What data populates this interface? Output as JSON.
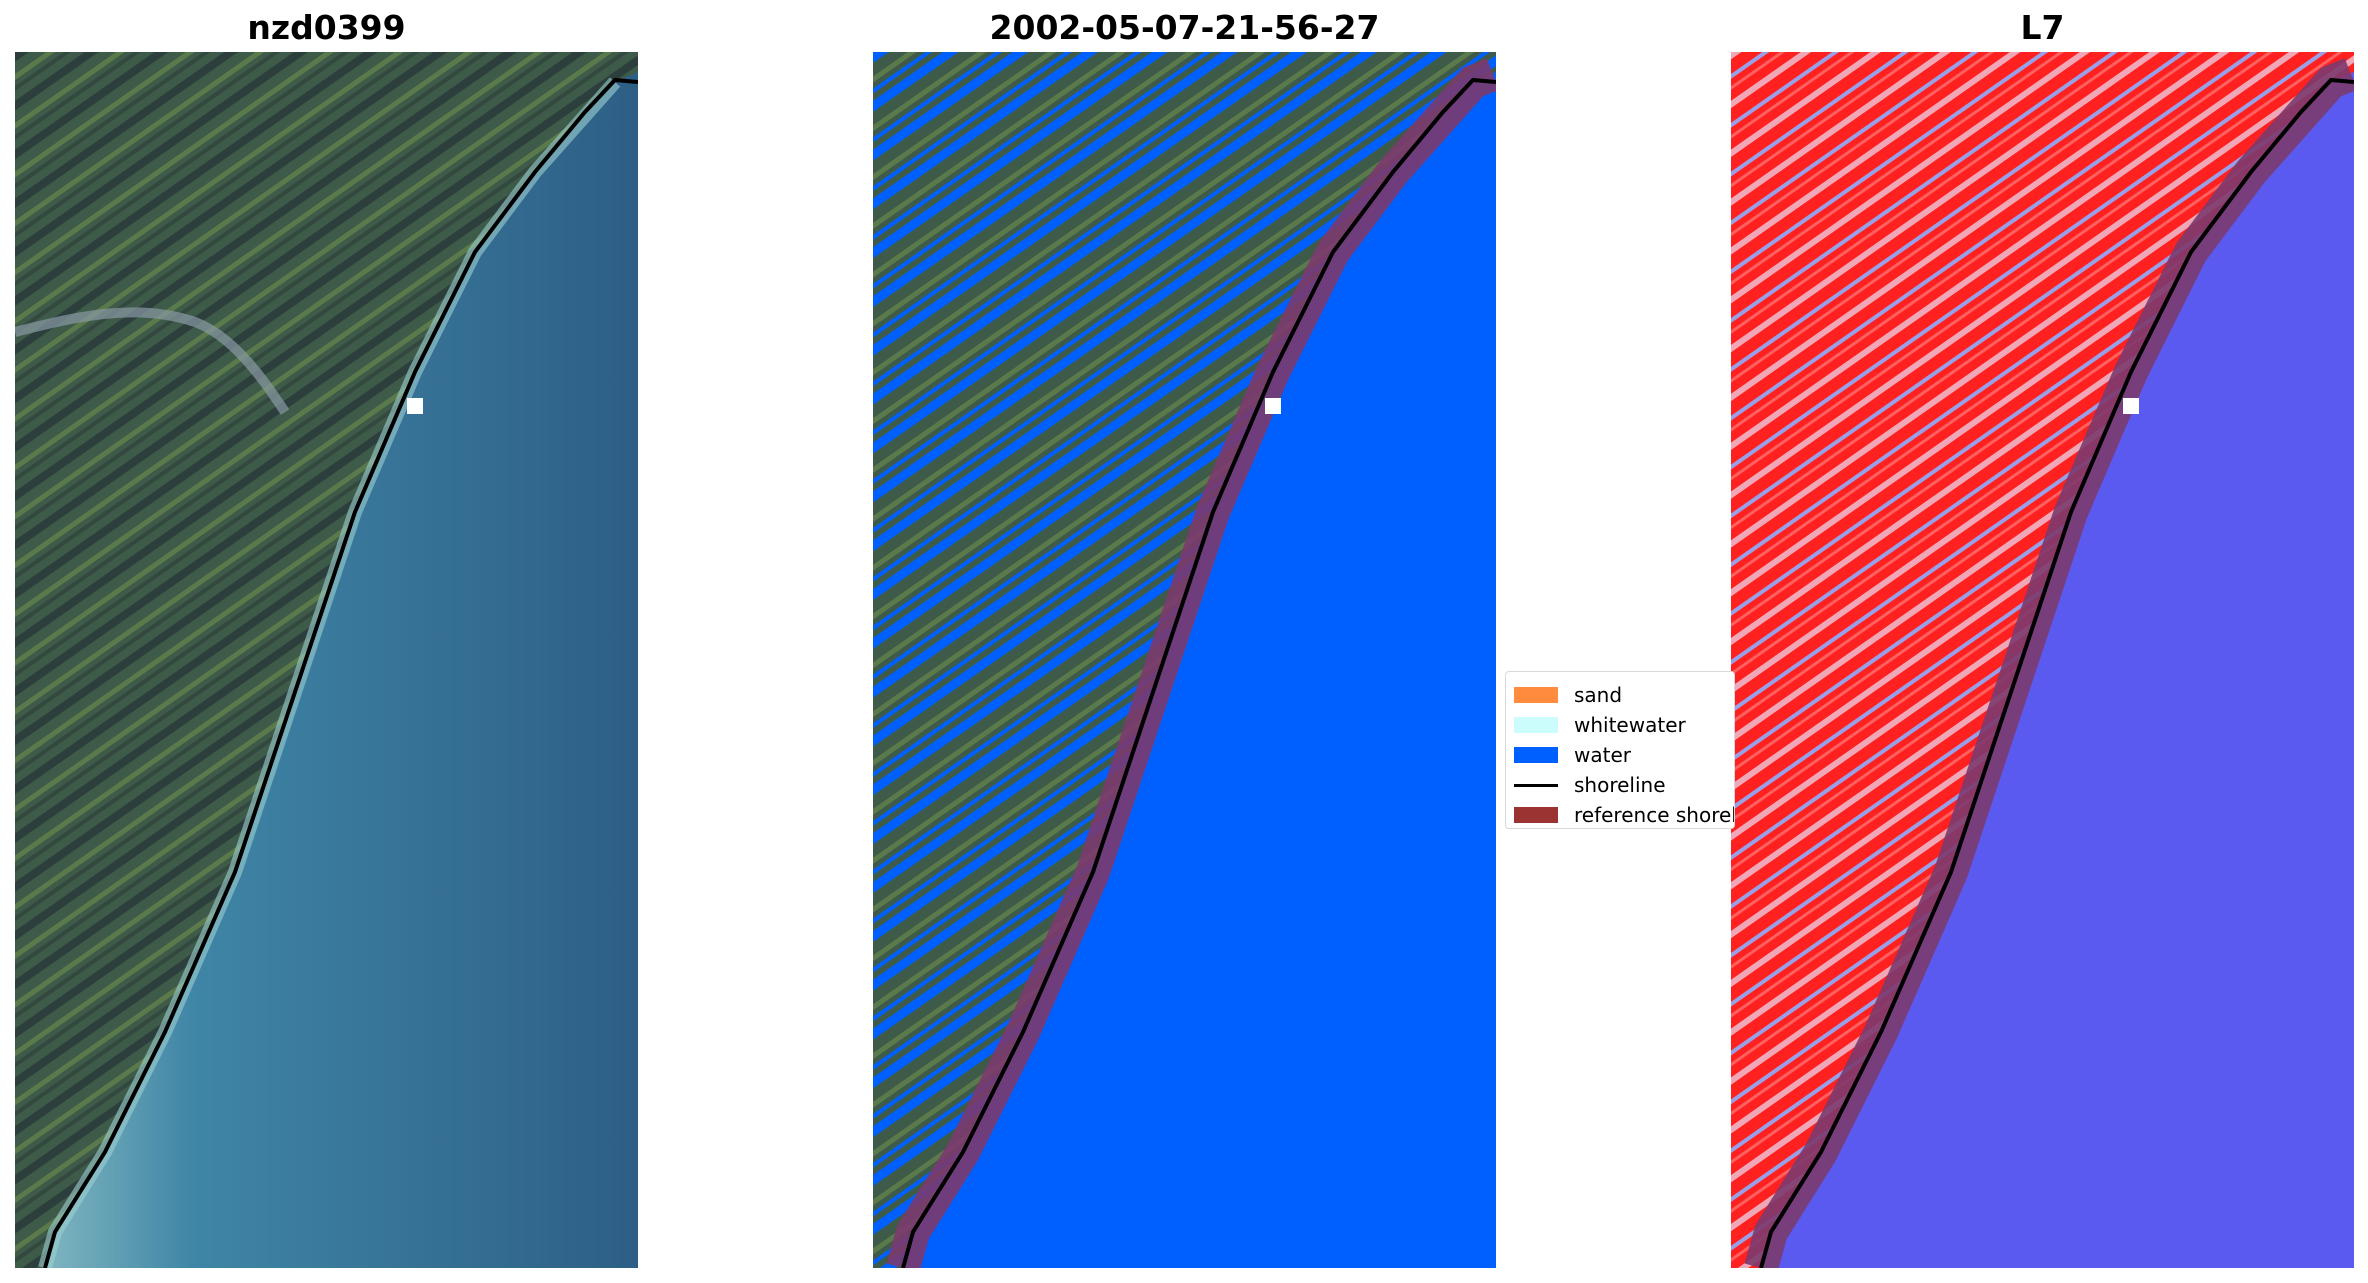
{
  "panels": [
    {
      "title": "nzd0399",
      "view": "rgb"
    },
    {
      "title": "2002-05-07-21-56-27",
      "view": "classified"
    },
    {
      "title": "L7",
      "view": "mndwi"
    }
  ],
  "legend": {
    "items": [
      {
        "label": "sand",
        "kind": "patch",
        "color": "#ff8c3c"
      },
      {
        "label": "whitewater",
        "kind": "patch",
        "color": "#ccfdfd"
      },
      {
        "label": "water",
        "kind": "patch",
        "color": "#0060ff"
      },
      {
        "label": "shoreline",
        "kind": "line",
        "color": "#000000"
      },
      {
        "label": "reference shoreline buffer",
        "kind": "patch",
        "color": "#9b3333"
      }
    ]
  },
  "colors": {
    "land_rgb": "#3d5846",
    "sea_rgb": "#2f6f95",
    "surf_rgb": "#8fc3c8",
    "water_class": "#0060ff",
    "buffer": "#7b3a6e",
    "land_index": "#ff2020",
    "water_index": "#5a5af0",
    "shoreline": "#000000"
  }
}
